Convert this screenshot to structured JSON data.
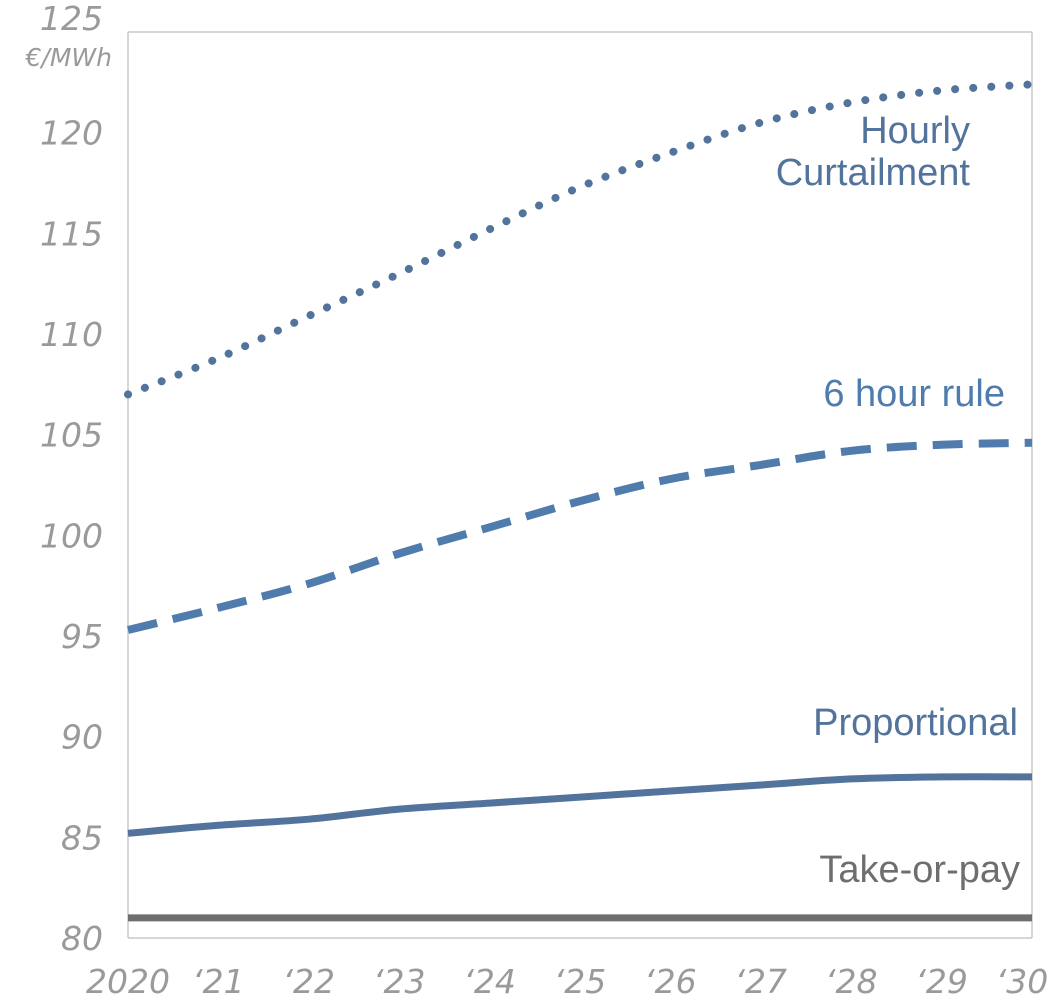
{
  "chart_data": {
    "type": "line",
    "unit_label": "€/MWh",
    "x": [
      2020,
      2021,
      2022,
      2023,
      2024,
      2025,
      2026,
      2027,
      2028,
      2029,
      2030
    ],
    "xtick_labels": [
      "2020",
      "‘21",
      "‘22",
      "‘23",
      "‘24",
      "‘25",
      "‘26",
      "‘27",
      "‘28",
      "‘29",
      "‘30"
    ],
    "ylim": [
      80,
      125
    ],
    "yticks": [
      80,
      85,
      90,
      95,
      100,
      105,
      110,
      115,
      120,
      125
    ],
    "grid": false,
    "series": [
      {
        "name": "Hourly Curtailment",
        "label_lines": [
          "Hourly",
          "Curtailment"
        ],
        "style": "dotted",
        "color": "#52739b",
        "values": [
          107.0,
          108.8,
          110.9,
          113.0,
          115.2,
          117.3,
          119.0,
          120.5,
          121.5,
          122.1,
          122.4
        ]
      },
      {
        "name": "6 hour rule",
        "label_lines": [
          "6 hour rule"
        ],
        "style": "dashed",
        "color": "#4f7cac",
        "values": [
          95.3,
          96.4,
          97.6,
          99.1,
          100.4,
          101.7,
          102.8,
          103.5,
          104.2,
          104.5,
          104.6
        ]
      },
      {
        "name": "Proportional",
        "label_lines": [
          "Proportional"
        ],
        "style": "solid",
        "color": "#52739b",
        "values": [
          85.2,
          85.6,
          85.9,
          86.4,
          86.7,
          87.0,
          87.3,
          87.6,
          87.9,
          88.0,
          88.0
        ]
      },
      {
        "name": "Take-or-pay",
        "label_lines": [
          "Take-or-pay"
        ],
        "style": "solid",
        "color": "#6e6e6e",
        "values": [
          81.0,
          81.0,
          81.0,
          81.0,
          81.0,
          81.0,
          81.0,
          81.0,
          81.0,
          81.0,
          81.0
        ]
      }
    ]
  }
}
